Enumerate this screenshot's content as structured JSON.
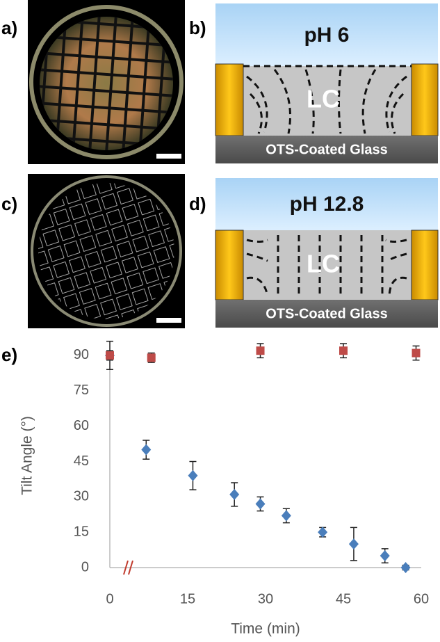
{
  "panels": [
    {
      "label": "a)"
    },
    {
      "label": "b)",
      "top": "pH 6",
      "middle": "LC",
      "bottom": "OTS-Coated Glass"
    },
    {
      "label": "c)"
    },
    {
      "label": "d)",
      "top": "pH 12.8",
      "middle": "LC",
      "bottom": "OTS-Coated Glass"
    },
    {
      "label": "e)"
    }
  ],
  "chart_data": {
    "type": "scatter",
    "xlabel": "Time (min)",
    "ylabel": "Tilt Angle (°)",
    "series": [
      {
        "color": "#4a7ebb",
        "marker": "diamond",
        "x": [
          0,
          7,
          16,
          24,
          29,
          34,
          41,
          47,
          53,
          57
        ],
        "values": [
          90,
          50,
          39,
          31,
          27,
          22,
          15,
          10,
          5,
          0
        ],
        "errors": [
          6,
          4,
          6,
          5,
          3,
          3,
          2,
          7,
          3,
          1
        ]
      },
      {
        "color": "#be4b48",
        "marker": "square",
        "x": [
          0,
          8,
          29,
          45,
          59
        ],
        "values": [
          90,
          89,
          92,
          92,
          91
        ],
        "errors": [
          2,
          2,
          3,
          3,
          3
        ]
      }
    ],
    "xlim": [
      0,
      60
    ],
    "ylim": [
      0,
      95
    ],
    "xticks": [
      0,
      15,
      30,
      45,
      60
    ],
    "yticks": [
      0,
      15,
      30,
      45,
      60,
      75,
      90
    ],
    "grid": false
  }
}
